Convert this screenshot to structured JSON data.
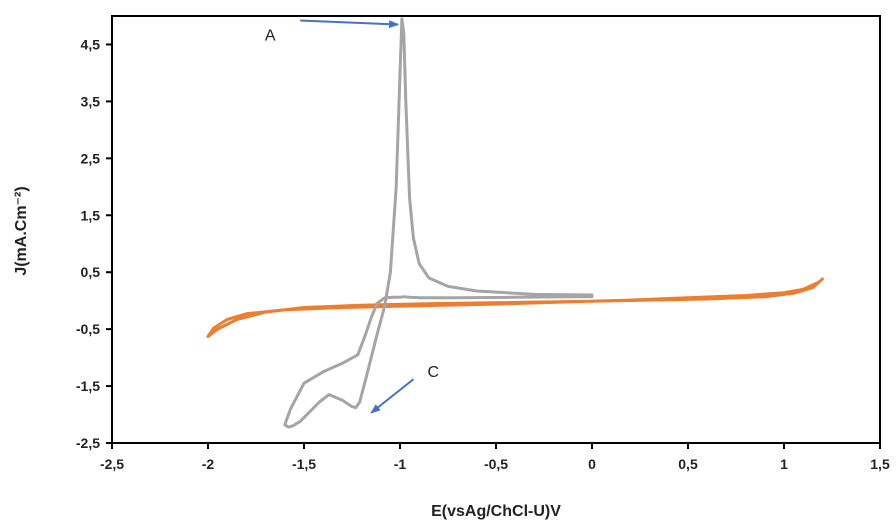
{
  "chart_data": {
    "type": "line",
    "title": "",
    "xlabel": "E(vsAg/ChCl-U)V",
    "ylabel": "J(mA.Cm⁻²)",
    "xlim": [
      -2.5,
      1.5
    ],
    "ylim": [
      -2.5,
      5.0
    ],
    "xticks": [
      -2.5,
      -2,
      -1.5,
      -1,
      -0.5,
      0,
      0.5,
      1,
      1.5
    ],
    "xtick_labels": [
      "-2,5",
      "-2",
      "-1,5",
      "-1",
      "-0,5",
      "0",
      "0,5",
      "1",
      "1,5"
    ],
    "yticks": [
      -2.5,
      -1.5,
      -0.5,
      0.5,
      1.5,
      2.5,
      3.5,
      4.5
    ],
    "ytick_labels": [
      "-2,5",
      "-1,5",
      "-0,5",
      "0,5",
      "1,5",
      "2,5",
      "3,5",
      "4,5"
    ],
    "grid": false,
    "legend": "none",
    "colors": {
      "series_orange": "#ED7D31",
      "series_gray": "#A5A5A5",
      "arrow": "#4472C4",
      "axis": "#000000"
    },
    "series": [
      {
        "color": "#ED7D31",
        "x": [
          -2.0,
          -1.95,
          -1.85,
          -1.7,
          -1.5,
          -1.2,
          -0.8,
          -0.4,
          0.0,
          0.3,
          0.6,
          0.9,
          1.05,
          1.15,
          1.2,
          1.18,
          1.1,
          1.0,
          0.8,
          0.5,
          0.2,
          -0.1,
          -0.5,
          -0.9,
          -1.3,
          -1.6,
          -1.8,
          -1.9,
          -1.97,
          -2.0
        ],
        "y": [
          -0.63,
          -0.5,
          -0.33,
          -0.2,
          -0.12,
          -0.08,
          -0.05,
          -0.03,
          -0.01,
          0.01,
          0.03,
          0.07,
          0.13,
          0.23,
          0.38,
          0.32,
          0.2,
          0.14,
          0.09,
          0.05,
          0.01,
          -0.02,
          -0.06,
          -0.09,
          -0.12,
          -0.16,
          -0.23,
          -0.33,
          -0.48,
          -0.63
        ]
      },
      {
        "color": "#A5A5A5",
        "x": [
          0.0,
          -0.3,
          -0.6,
          -0.75,
          -0.85,
          -0.9,
          -0.93,
          -0.95,
          -0.97,
          -0.98,
          -0.99,
          -1.0,
          -1.02,
          -1.05,
          -1.08,
          -1.12,
          -1.15,
          -1.18,
          -1.21,
          -1.23,
          -1.25,
          -1.3,
          -1.37,
          -1.42,
          -1.47,
          -1.52,
          -1.56,
          -1.58,
          -1.6,
          -1.57,
          -1.5,
          -1.4,
          -1.3,
          -1.22,
          -1.18,
          -1.15,
          -1.12,
          -1.08,
          -1.03,
          -1.0,
          -0.98,
          -0.95,
          -0.9,
          -0.7,
          -0.4,
          -0.1,
          0.0
        ],
        "y": [
          0.1,
          0.11,
          0.17,
          0.25,
          0.4,
          0.65,
          1.1,
          1.8,
          3.5,
          4.7,
          4.95,
          4.0,
          2.0,
          0.5,
          -0.1,
          -0.6,
          -1.0,
          -1.4,
          -1.78,
          -1.88,
          -1.86,
          -1.75,
          -1.65,
          -1.78,
          -1.95,
          -2.12,
          -2.2,
          -2.22,
          -2.18,
          -1.9,
          -1.45,
          -1.25,
          -1.1,
          -0.95,
          -0.6,
          -0.3,
          -0.05,
          0.05,
          0.06,
          0.06,
          0.07,
          0.06,
          0.05,
          0.05,
          0.06,
          0.07,
          0.07
        ]
      }
    ],
    "annotations": [
      {
        "label": "A",
        "target": [
          -1.01,
          4.85
        ],
        "from": [
          -1.52,
          4.92
        ]
      },
      {
        "label": "C",
        "target": [
          -1.15,
          -1.97
        ],
        "from": [
          -0.93,
          -1.38
        ]
      }
    ]
  }
}
